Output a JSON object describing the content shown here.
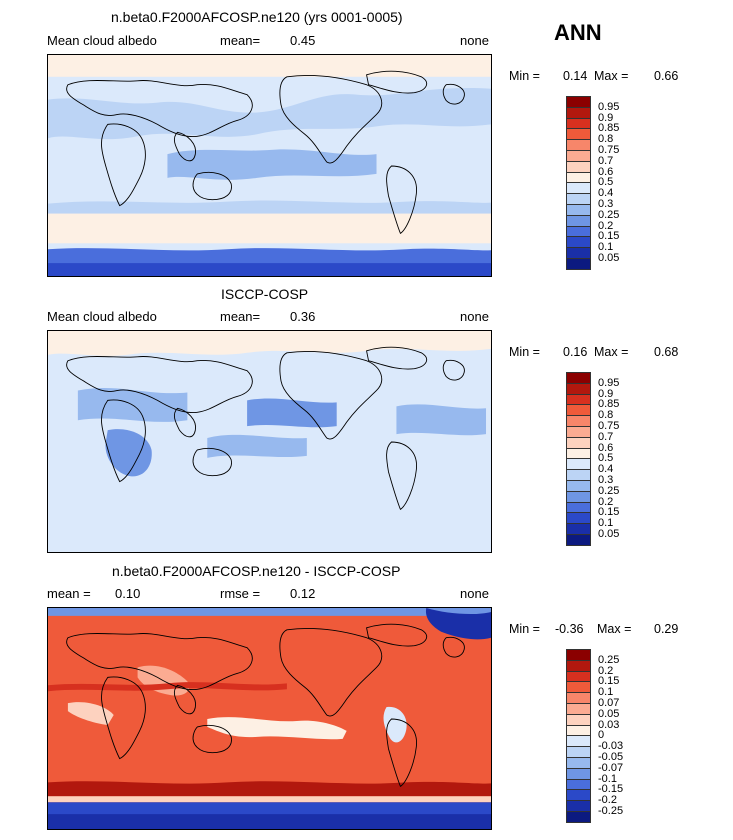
{
  "season": "ANN",
  "panels": [
    {
      "title": "n.beta0.F2000AFCOSP.ne120 (yrs 0001-0005)",
      "left_label": "Mean cloud albedo",
      "mean_label": "mean=",
      "mean_value": "0.45",
      "right_label": "none",
      "min_label": "Min =",
      "min_value": "0.14",
      "max_label": "Max =",
      "max_value": "0.66",
      "colorbar": {
        "labels": [
          "0.95",
          "0.9",
          "0.85",
          "0.8",
          "0.75",
          "0.7",
          "0.6",
          "0.5",
          "0.4",
          "0.3",
          "0.25",
          "0.2",
          "0.15",
          "0.1",
          "0.05"
        ],
        "colors": [
          "#8b0000",
          "#b2180e",
          "#d7301f",
          "#ef5a3a",
          "#f7866a",
          "#fbab92",
          "#fdd2bf",
          "#fdf0e4",
          "#dbe9fb",
          "#bcd4f5",
          "#97b9ee",
          "#6f96e4",
          "#4a6edc",
          "#2b49c8",
          "#1a2fa8",
          "#0c1a80"
        ]
      }
    },
    {
      "title": "ISCCP-COSP",
      "left_label": "Mean cloud albedo",
      "mean_label": "mean=",
      "mean_value": "0.36",
      "right_label": "none",
      "min_label": "Min =",
      "min_value": "0.16",
      "max_label": "Max =",
      "max_value": "0.68",
      "colorbar": {
        "labels": [
          "0.95",
          "0.9",
          "0.85",
          "0.8",
          "0.75",
          "0.7",
          "0.6",
          "0.5",
          "0.4",
          "0.3",
          "0.25",
          "0.2",
          "0.15",
          "0.1",
          "0.05"
        ],
        "colors": [
          "#8b0000",
          "#b2180e",
          "#d7301f",
          "#ef5a3a",
          "#f7866a",
          "#fbab92",
          "#fdd2bf",
          "#fdf0e4",
          "#dbe9fb",
          "#bcd4f5",
          "#97b9ee",
          "#6f96e4",
          "#4a6edc",
          "#2b49c8",
          "#1a2fa8",
          "#0c1a80"
        ]
      }
    },
    {
      "title": "n.beta0.F2000AFCOSP.ne120 - ISCCP-COSP",
      "left_label": "mean =",
      "mean_label": "rmse =",
      "left_value": "0.10",
      "mean_value": "0.12",
      "right_label": "none",
      "min_label": "Min =",
      "min_value": "-0.36",
      "max_label": "Max =",
      "max_value": "0.29",
      "colorbar": {
        "labels": [
          "0.25",
          "0.2",
          "0.15",
          "0.1",
          "0.07",
          "0.05",
          "0.03",
          "0",
          "-0.03",
          "-0.05",
          "-0.07",
          "-0.1",
          "-0.15",
          "-0.2",
          "-0.25"
        ],
        "colors": [
          "#8b0000",
          "#b2180e",
          "#d7301f",
          "#ef5a3a",
          "#f7866a",
          "#fbab92",
          "#fdd2bf",
          "#fdf0e4",
          "#dbe9fb",
          "#bcd4f5",
          "#97b9ee",
          "#6f96e4",
          "#4a6edc",
          "#2b49c8",
          "#1a2fa8",
          "#0c1a80"
        ]
      }
    }
  ]
}
